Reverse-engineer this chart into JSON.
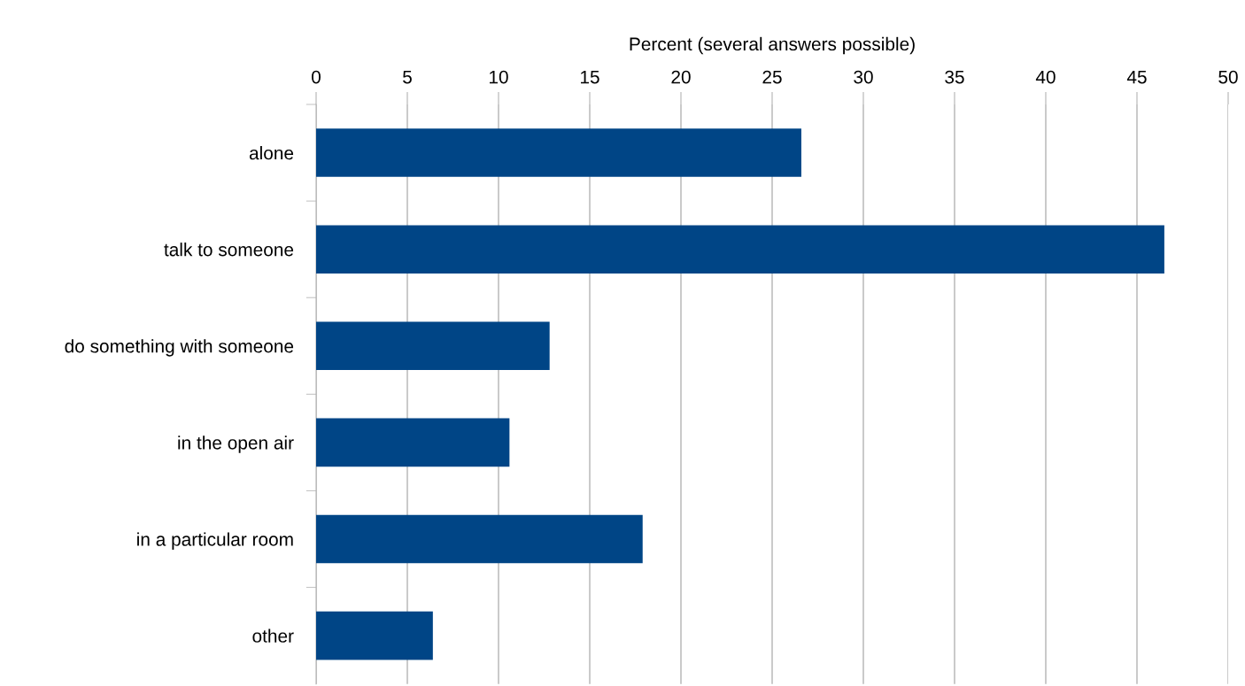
{
  "chart_data": {
    "type": "bar",
    "orientation": "horizontal",
    "xlabel": "Percent (several answers possible)",
    "categories": [
      "alone",
      "talk to someone",
      "do something with someone",
      "in the open air",
      "in a particular room",
      "other"
    ],
    "values": [
      26.6,
      46.5,
      12.8,
      10.6,
      17.9,
      6.4
    ],
    "color": "#004586",
    "xlim": [
      0,
      50
    ],
    "xticks": [
      0,
      5,
      10,
      15,
      20,
      25,
      30,
      35,
      40,
      45,
      50
    ],
    "grid": "x"
  }
}
